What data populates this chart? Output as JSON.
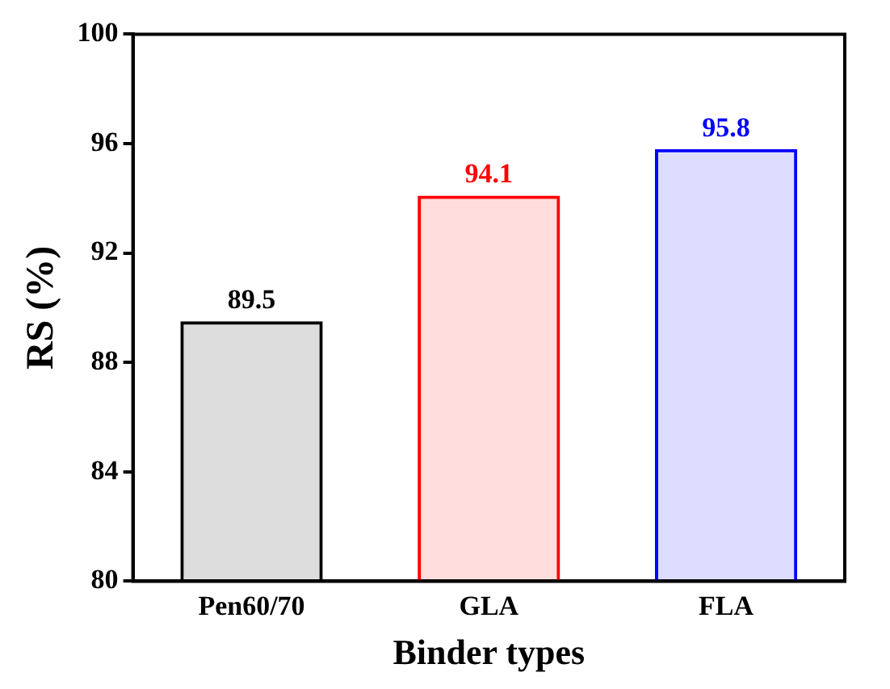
{
  "chart_data": {
    "type": "bar",
    "xlabel": "Binder types",
    "ylabel": "RS (%)",
    "categories": [
      "Pen60/70",
      "GLA",
      "FLA"
    ],
    "values": [
      89.5,
      94.1,
      95.8
    ],
    "colors": [
      "#000000",
      "#ff0000",
      "#0000ff"
    ],
    "ylim": [
      80,
      100
    ],
    "yticks": [
      80,
      84,
      88,
      92,
      96,
      100
    ],
    "data_labels": true,
    "grid": false
  }
}
